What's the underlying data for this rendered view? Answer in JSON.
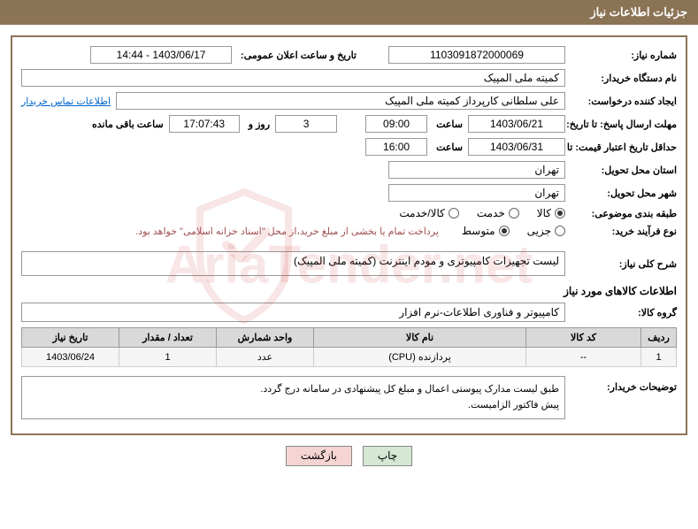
{
  "header": {
    "title": "جزئیات اطلاعات نیاز"
  },
  "fields": {
    "need_number": {
      "label": "شماره نیاز:",
      "value": "1103091872000069"
    },
    "announce_datetime": {
      "label": "تاریخ و ساعت اعلان عمومی:",
      "value": "1403/06/17 - 14:44"
    },
    "buyer_org": {
      "label": "نام دستگاه خریدار:",
      "value": "کمیته ملی المپیک"
    },
    "requester": {
      "label": "ایجاد کننده درخواست:",
      "value": "علی سلطانی کارپرداز کمیته ملی المپیک"
    },
    "contact_link": "اطلاعات تماس خریدار",
    "response_deadline": {
      "label": "مهلت ارسال پاسخ: تا تاریخ:",
      "date": "1403/06/21",
      "time_label": "ساعت",
      "time": "09:00",
      "days": "3",
      "days_label": "روز و",
      "remaining_time": "17:07:43",
      "remaining_label": "ساعت باقی مانده"
    },
    "price_validity": {
      "label": "حداقل تاریخ اعتبار قیمت: تا تاریخ:",
      "date": "1403/06/31",
      "time_label": "ساعت",
      "time": "16:00"
    },
    "delivery_province": {
      "label": "استان محل تحویل:",
      "value": "تهران"
    },
    "delivery_city": {
      "label": "شهر محل تحویل:",
      "value": "تهران"
    },
    "category": {
      "label": "طبقه بندی موضوعی:",
      "options": [
        "کالا",
        "خدمت",
        "کالا/خدمت"
      ],
      "selected": 0
    },
    "purchase_type": {
      "label": "نوع فرآیند خرید:",
      "options": [
        "جزیی",
        "متوسط"
      ],
      "selected": 1,
      "note": "پرداخت تمام یا بخشی از مبلغ خرید،از محل \"اسناد خزانه اسلامی\" خواهد بود."
    },
    "need_description": {
      "label": "شرح کلی نیاز:",
      "value": "لیست تجهیزات کامپیوتری و مودم اینترنت (کمیته ملی المپیک)"
    },
    "goods_info_title": "اطلاعات کالاهای مورد نیاز",
    "goods_group": {
      "label": "گروه کالا:",
      "value": "کامپیوتر و فناوری اطلاعات-نرم افزار"
    },
    "buyer_notes": {
      "label": "توضیحات خریدار:",
      "value": "طبق لیست مدارک پیوستی اعمال و مبلغ کل پیشنهادی در سامانه درج گردد.\nپیش فاکتور الزامیست."
    }
  },
  "table": {
    "columns": [
      "ردیف",
      "کد کالا",
      "نام کالا",
      "واحد شمارش",
      "تعداد / مقدار",
      "تاریخ نیاز"
    ],
    "col_widths": [
      "40px",
      "130px",
      "auto",
      "110px",
      "110px",
      "110px"
    ],
    "rows": [
      [
        "1",
        "--",
        "پردازنده (CPU)",
        "عدد",
        "1",
        "1403/06/24"
      ]
    ]
  },
  "buttons": {
    "print": "چاپ",
    "back": "بازگشت"
  },
  "watermark": {
    "text": "AriaTender.net",
    "shield_color": "#c83232"
  },
  "colors": {
    "header_bg": "#8b7355",
    "border": "#8b7355",
    "th_bg": "#d9d9d9",
    "link": "#0066cc",
    "note": "#a05050"
  }
}
